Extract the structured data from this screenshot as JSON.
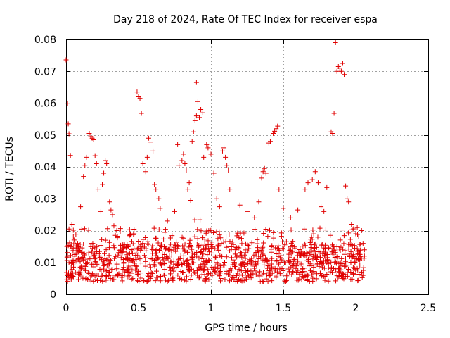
{
  "chart_data": {
    "type": "scatter",
    "title": "Day 218 of 2024, Rate Of TEC Index for receiver espa",
    "xlabel": "GPS time / hours",
    "ylabel": "ROTI / TECUs",
    "xlim": [
      0,
      2.5
    ],
    "ylim": [
      0,
      0.08
    ],
    "x_ticks": [
      0,
      0.5,
      1,
      1.5,
      2,
      2.5
    ],
    "x_tick_labels": [
      "0",
      "0.5",
      "1",
      "1.5",
      "2",
      "2.5"
    ],
    "y_ticks": [
      0,
      0.01,
      0.02,
      0.03,
      0.04,
      0.05,
      0.06,
      0.07,
      0.08
    ],
    "y_tick_labels": [
      "0",
      "0.01",
      "0.02",
      "0.03",
      "0.04",
      "0.05",
      "0.06",
      "0.07",
      "0.08"
    ],
    "grid": true,
    "marker": "+",
    "marker_color": "#e00000",
    "series": [
      {
        "name": "ROTI",
        "points": [
          [
            0.0,
            0.0736
          ],
          [
            0.01,
            0.0598
          ],
          [
            0.015,
            0.0535
          ],
          [
            0.02,
            0.0504
          ],
          [
            0.03,
            0.0436
          ],
          [
            0.005,
            0.015
          ],
          [
            0.01,
            0.012
          ],
          [
            0.02,
            0.0205
          ],
          [
            0.04,
            0.022
          ],
          [
            0.05,
            0.018
          ],
          [
            0.08,
            0.016
          ],
          [
            0.1,
            0.0275
          ],
          [
            0.12,
            0.037
          ],
          [
            0.13,
            0.0405
          ],
          [
            0.14,
            0.043
          ],
          [
            0.16,
            0.0505
          ],
          [
            0.17,
            0.0495
          ],
          [
            0.18,
            0.049
          ],
          [
            0.19,
            0.0485
          ],
          [
            0.2,
            0.0435
          ],
          [
            0.21,
            0.041
          ],
          [
            0.22,
            0.033
          ],
          [
            0.24,
            0.026
          ],
          [
            0.25,
            0.0345
          ],
          [
            0.26,
            0.038
          ],
          [
            0.27,
            0.042
          ],
          [
            0.28,
            0.041
          ],
          [
            0.3,
            0.029
          ],
          [
            0.31,
            0.0265
          ],
          [
            0.32,
            0.025
          ],
          [
            0.33,
            0.0215
          ],
          [
            0.34,
            0.0185
          ],
          [
            0.35,
            0.02
          ],
          [
            0.49,
            0.0635
          ],
          [
            0.5,
            0.062
          ],
          [
            0.51,
            0.0615
          ],
          [
            0.52,
            0.0568
          ],
          [
            0.53,
            0.041
          ],
          [
            0.55,
            0.0385
          ],
          [
            0.56,
            0.043
          ],
          [
            0.57,
            0.049
          ],
          [
            0.58,
            0.0478
          ],
          [
            0.6,
            0.045
          ],
          [
            0.61,
            0.0345
          ],
          [
            0.62,
            0.033
          ],
          [
            0.64,
            0.03
          ],
          [
            0.65,
            0.027
          ],
          [
            0.7,
            0.023
          ],
          [
            0.75,
            0.026
          ],
          [
            0.77,
            0.047
          ],
          [
            0.78,
            0.0405
          ],
          [
            0.8,
            0.042
          ],
          [
            0.81,
            0.044
          ],
          [
            0.82,
            0.041
          ],
          [
            0.83,
            0.039
          ],
          [
            0.84,
            0.033
          ],
          [
            0.85,
            0.035
          ],
          [
            0.86,
            0.0295
          ],
          [
            0.87,
            0.048
          ],
          [
            0.88,
            0.051
          ],
          [
            0.89,
            0.0545
          ],
          [
            0.9,
            0.056
          ],
          [
            0.91,
            0.0605
          ],
          [
            0.9,
            0.0665
          ],
          [
            0.92,
            0.0555
          ],
          [
            0.93,
            0.058
          ],
          [
            0.94,
            0.057
          ],
          [
            0.95,
            0.043
          ],
          [
            0.97,
            0.047
          ],
          [
            0.98,
            0.046
          ],
          [
            1.0,
            0.044
          ],
          [
            1.02,
            0.038
          ],
          [
            1.04,
            0.03
          ],
          [
            1.06,
            0.0275
          ],
          [
            1.08,
            0.045
          ],
          [
            1.09,
            0.046
          ],
          [
            1.1,
            0.043
          ],
          [
            1.11,
            0.0405
          ],
          [
            1.12,
            0.039
          ],
          [
            1.13,
            0.033
          ],
          [
            1.2,
            0.028
          ],
          [
            1.25,
            0.026
          ],
          [
            1.3,
            0.024
          ],
          [
            1.33,
            0.029
          ],
          [
            1.35,
            0.0365
          ],
          [
            1.36,
            0.0385
          ],
          [
            1.37,
            0.0395
          ],
          [
            1.38,
            0.038
          ],
          [
            1.4,
            0.0475
          ],
          [
            1.41,
            0.048
          ],
          [
            1.43,
            0.0505
          ],
          [
            1.44,
            0.0512
          ],
          [
            1.45,
            0.052
          ],
          [
            1.46,
            0.0528
          ],
          [
            1.47,
            0.033
          ],
          [
            1.5,
            0.027
          ],
          [
            1.55,
            0.024
          ],
          [
            1.6,
            0.0265
          ],
          [
            1.65,
            0.033
          ],
          [
            1.67,
            0.035
          ],
          [
            1.7,
            0.036
          ],
          [
            1.72,
            0.0385
          ],
          [
            1.74,
            0.035
          ],
          [
            1.76,
            0.0275
          ],
          [
            1.78,
            0.026
          ],
          [
            1.8,
            0.0335
          ],
          [
            1.83,
            0.051
          ],
          [
            1.84,
            0.0505
          ],
          [
            1.85,
            0.0568
          ],
          [
            1.86,
            0.079
          ],
          [
            1.87,
            0.07
          ],
          [
            1.88,
            0.0715
          ],
          [
            1.89,
            0.071
          ],
          [
            1.9,
            0.07
          ],
          [
            1.91,
            0.0725
          ],
          [
            1.92,
            0.069
          ],
          [
            1.93,
            0.034
          ],
          [
            1.94,
            0.03
          ],
          [
            1.95,
            0.029
          ],
          [
            1.97,
            0.022
          ],
          [
            2.0,
            0.019
          ],
          [
            2.02,
            0.018
          ],
          [
            2.04,
            0.02
          ],
          [
            2.05,
            0.016
          ],
          [
            2.06,
            0.012
          ]
        ]
      }
    ],
    "dense_band": {
      "x_start": 0.0,
      "x_end": 2.06,
      "typical_min": 0.004,
      "typical_max": 0.021,
      "center": 0.01,
      "point_count": 1200
    }
  }
}
